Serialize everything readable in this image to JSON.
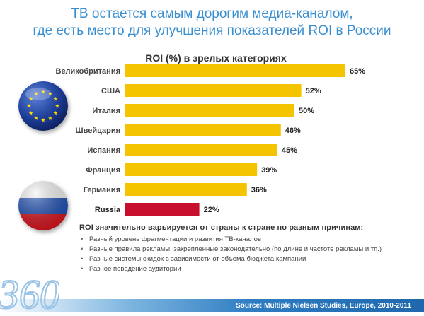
{
  "slide": {
    "title_line1": "ТВ остается самым дорогим медиа-каналом,",
    "title_line2": "где есть место для улучшения показателей ROI в России"
  },
  "chart_data": {
    "type": "bar",
    "orientation": "horizontal",
    "title": "ROI (%) в зрелых категориях",
    "categories": [
      "Великобритания",
      "США",
      "Италия",
      "Швейцария",
      "Испания",
      "Франция",
      "Германия",
      "Russia"
    ],
    "values": [
      65,
      52,
      50,
      46,
      45,
      39,
      36,
      22
    ],
    "value_labels": [
      "65%",
      "52%",
      "50%",
      "46%",
      "45%",
      "39%",
      "36%",
      "22%"
    ],
    "colors": {
      "default": "#f5c400",
      "highlight": "#c8102e"
    },
    "highlight_category": "Russia",
    "xlim": [
      0,
      70
    ],
    "grid": false,
    "legend": "none"
  },
  "notes": {
    "heading": "ROI значительно варьируется от страны к стране по разным причинам:",
    "items": [
      "Разный уровень фрагментации и развития ТВ-каналов",
      "Разные правила рекламы, закрепленные законодательно (по длине и частоте рекламы и тп.)",
      "Разные системы скидок в зависимости от объема бюджета кампании",
      "Разное поведение аудитории"
    ]
  },
  "footer": {
    "source": "Source:  Multiple Nielsen Studies,  Europe,  2010-2011",
    "logo_text": "360"
  },
  "icons": [
    "eu-flag-icon",
    "russia-flag-icon",
    "logo-360-icon"
  ]
}
